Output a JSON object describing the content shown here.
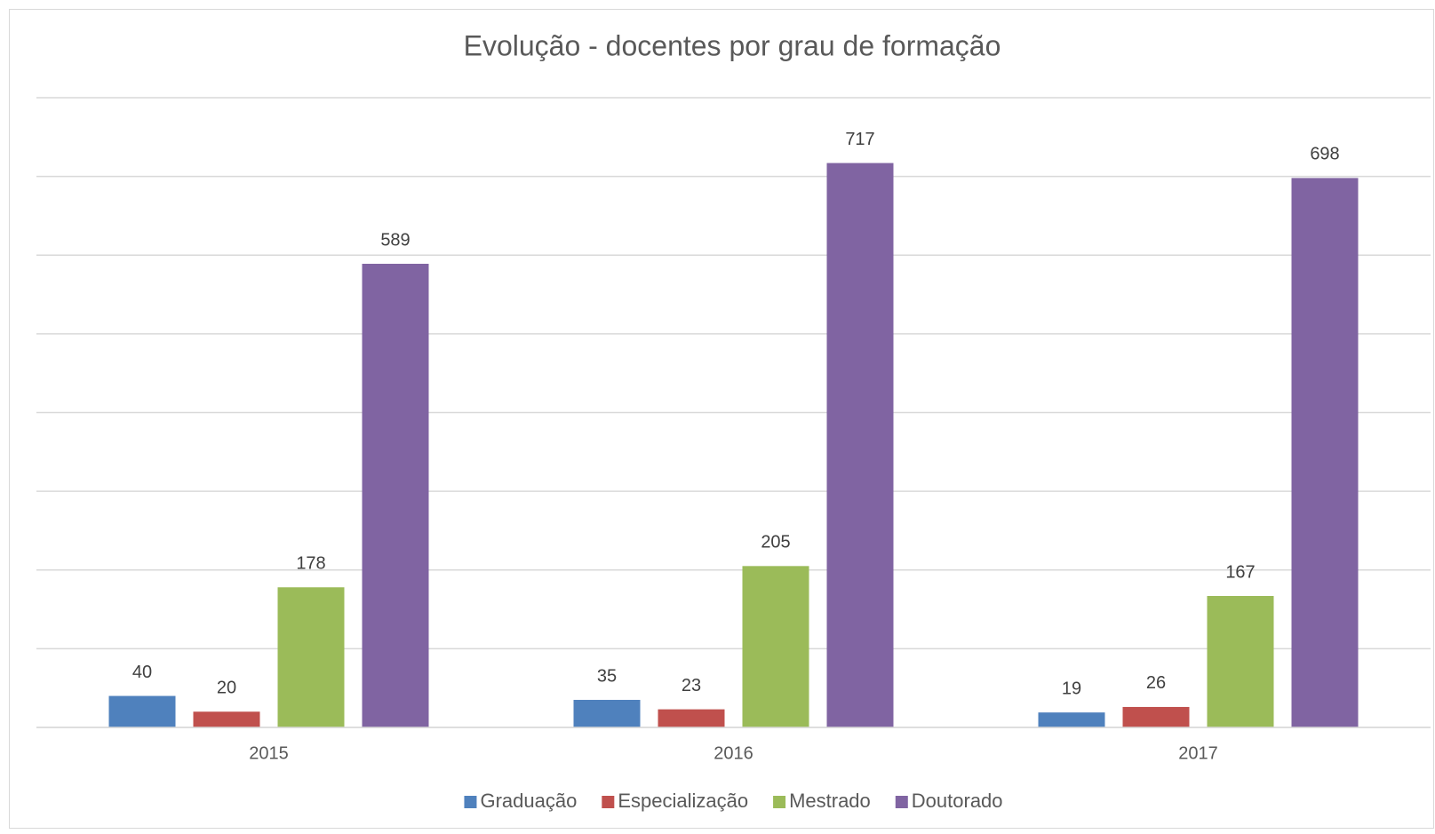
{
  "chart_data": {
    "type": "bar",
    "title": "Evolução - docentes por grau de formação",
    "categories": [
      "2015",
      "2016",
      "2017"
    ],
    "series": [
      {
        "name": "Graduação",
        "color": "#4f81bd",
        "values": [
          40,
          35,
          19
        ]
      },
      {
        "name": "Especialização",
        "color": "#c0504d",
        "values": [
          20,
          23,
          26
        ]
      },
      {
        "name": "Mestrado",
        "color": "#9bbb59",
        "values": [
          178,
          205,
          167
        ]
      },
      {
        "name": "Doutorado",
        "color": "#8064a2",
        "values": [
          589,
          717,
          698
        ]
      }
    ],
    "ylim": [
      0,
      800
    ],
    "yticks": [
      0,
      100,
      200,
      300,
      400,
      500,
      600,
      700,
      800
    ],
    "grid": true,
    "legend": "bottom"
  }
}
